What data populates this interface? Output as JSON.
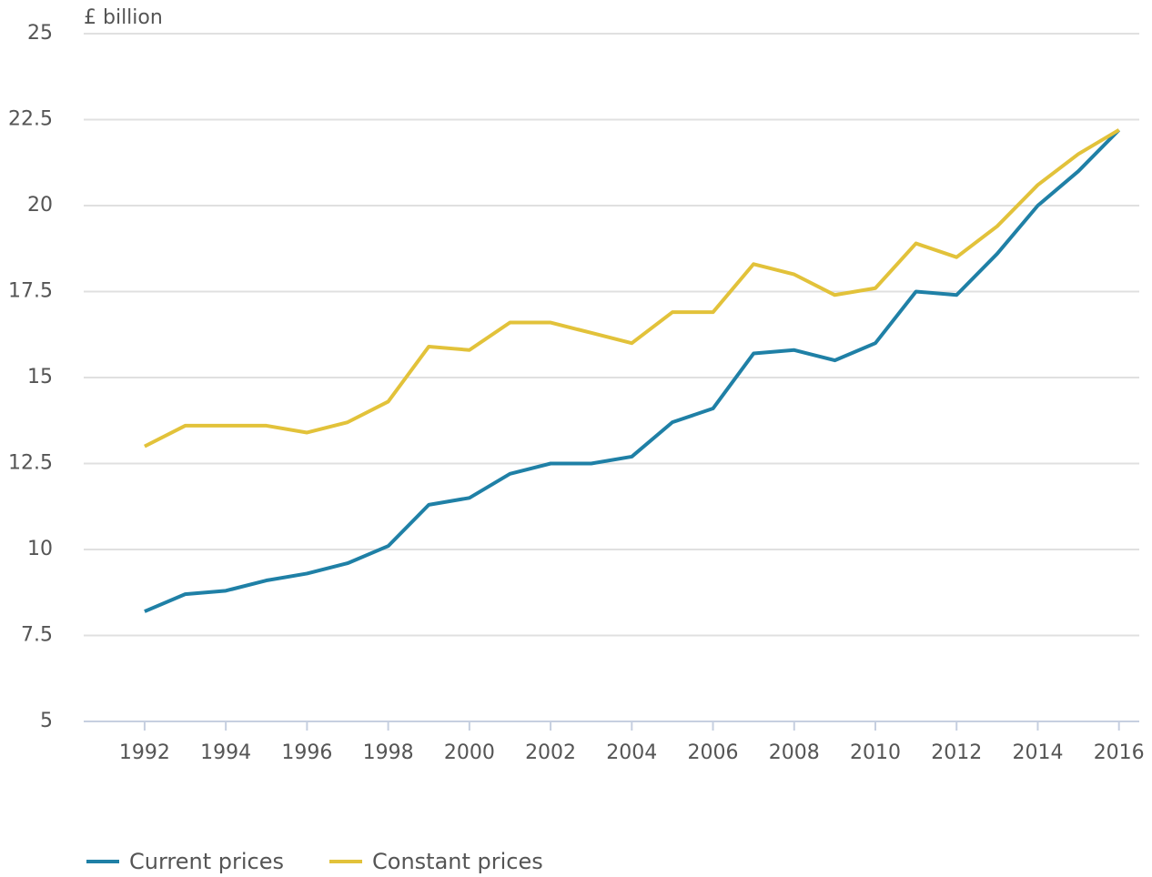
{
  "chart_data": {
    "type": "line",
    "y_label": "£ billion",
    "x": [
      1992,
      1993,
      1994,
      1995,
      1996,
      1997,
      1998,
      1999,
      2000,
      2001,
      2002,
      2003,
      2004,
      2005,
      2006,
      2007,
      2008,
      2009,
      2010,
      2011,
      2012,
      2013,
      2014,
      2015,
      2016
    ],
    "series": [
      {
        "name": "Current prices",
        "color": "#1f80a6",
        "values": [
          8.2,
          8.7,
          8.8,
          9.1,
          9.3,
          9.6,
          10.1,
          11.3,
          11.5,
          12.2,
          12.5,
          12.5,
          12.7,
          13.7,
          14.1,
          15.7,
          15.8,
          15.5,
          16.0,
          17.5,
          17.4,
          18.6,
          20.0,
          21.0,
          22.2
        ]
      },
      {
        "name": "Constant prices",
        "color": "#e2c23a",
        "values": [
          13.0,
          13.6,
          13.6,
          13.6,
          13.4,
          13.7,
          14.3,
          15.9,
          15.8,
          16.6,
          16.6,
          16.3,
          16.0,
          16.9,
          16.9,
          18.3,
          18.0,
          17.4,
          17.6,
          18.9,
          18.5,
          19.4,
          20.6,
          21.5,
          22.2
        ]
      }
    ],
    "xlim": [
      1990.5,
      2016.5
    ],
    "xticks": [
      1992,
      1994,
      1996,
      1998,
      2000,
      2002,
      2004,
      2006,
      2008,
      2010,
      2012,
      2014,
      2016
    ],
    "ylim": [
      5,
      25
    ],
    "yticks": [
      5,
      7.5,
      10,
      12.5,
      15,
      17.5,
      20,
      22.5,
      25
    ],
    "grid": true,
    "legend": "bottom-left"
  }
}
